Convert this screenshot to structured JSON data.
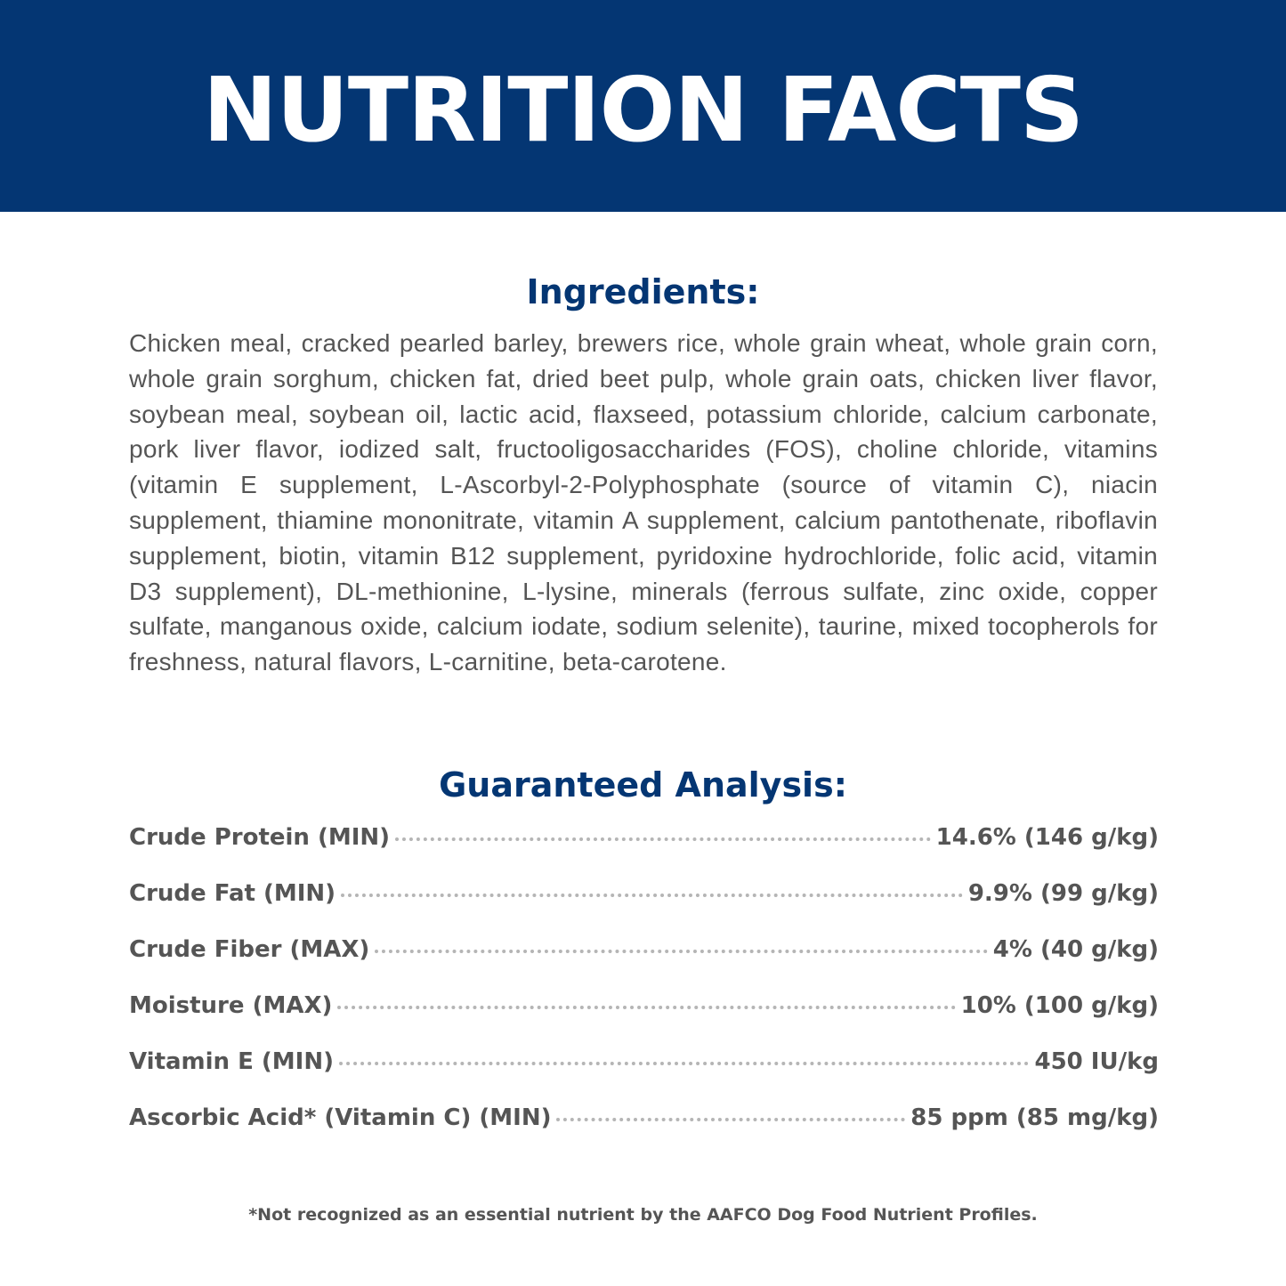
{
  "header": {
    "title": "NUTRITION FACTS",
    "background": "#043673"
  },
  "ingredients": {
    "heading": "Ingredients:",
    "text": "Chicken meal, cracked pearled barley, brewers rice, whole grain wheat, whole grain corn, whole grain sorghum, chicken fat, dried beet pulp, whole grain oats, chicken liver flavor, soybean meal, soybean oil, lactic acid, flaxseed, potassium chloride, calcium carbonate, pork liver flavor, iodized salt, fructooligosaccharides (FOS), choline chloride, vitamins (vitamin E supplement, L-Ascorbyl-2-Polyphosphate (source of vitamin C), niacin supplement, thiamine mononitrate, vitamin A supplement, calcium pantothenate, riboflavin supplement, biotin, vitamin B12 supplement, pyridoxine hydrochloride, folic acid, vitamin D3 supplement), DL-methionine, L-lysine, minerals (ferrous sulfate, zinc oxide, copper sulfate, manganous oxide, calcium iodate, sodium selenite), taurine, mixed tocopherols for freshness, natural flavors, L-carnitine, beta-carotene."
  },
  "analysis": {
    "heading": "Guaranteed Analysis:",
    "rows": [
      {
        "label": "Crude Protein (MIN)",
        "value": "14.6% (146 g/kg)"
      },
      {
        "label": "Crude Fat (MIN)",
        "value": "9.9% (99 g/kg)"
      },
      {
        "label": "Crude Fiber (MAX)",
        "value": "4% (40 g/kg)"
      },
      {
        "label": "Moisture (MAX)",
        "value": "10% (100 g/kg)"
      },
      {
        "label": "Vitamin E (MIN)",
        "value": "450 IU/kg"
      },
      {
        "label": "Ascorbic Acid* (Vitamin C) (MIN)",
        "value": "85 ppm (85 mg/kg)"
      }
    ]
  },
  "footnote": "*Not recognized as an essential nutrient by the AAFCO Dog Food Nutrient Profiles."
}
